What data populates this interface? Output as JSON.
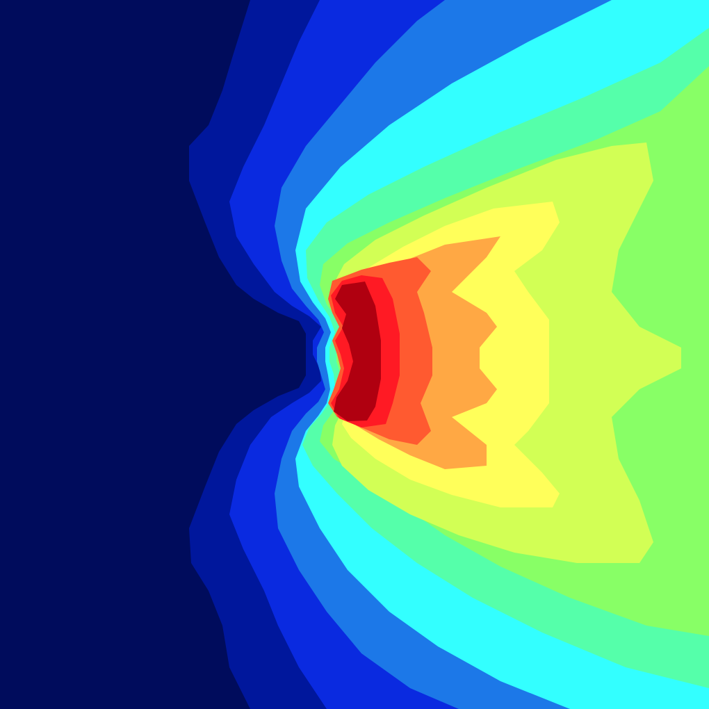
{
  "chart_data": {
    "type": "heatmap",
    "subtype": "filled-contour",
    "title": "",
    "xlabel": "",
    "ylabel": "",
    "colormap": "jet",
    "axes_visible": false,
    "grid": false,
    "legend": "none",
    "level_count": 13,
    "level_colors": [
      "#000c5c",
      "#00179c",
      "#0a2ae0",
      "#1c78e8",
      "#33ffff",
      "#55ffaa",
      "#88ff66",
      "#d2ff55",
      "#ffff5a",
      "#ffa844",
      "#ff5a30",
      "#ff1a24",
      "#b00010"
    ],
    "hotspot_location": "center-left",
    "field_description_visible": false
  }
}
